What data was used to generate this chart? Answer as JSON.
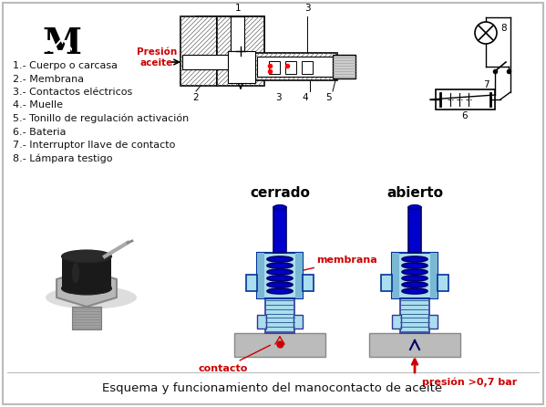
{
  "caption": "Esquema y funcionamiento del manocontacto de aceite",
  "bg_color": "#f0f0f0",
  "border_color": "#bbbbbb",
  "legend_items": [
    "1.- Cuerpo o carcasa",
    "2.- Membrana",
    "3.- Contactos eléctricos",
    "4.- Muelle",
    "5.- Tonillo de regulación activación",
    "6.- Bateria",
    "7.- Interruptor llave de contacto",
    "8.- Lámpara testigo"
  ],
  "label_cerrado": "cerrado",
  "label_abierto": "abierto",
  "label_membrana": "membrana",
  "label_contacto": "contacto",
  "label_presion": "presión >0,7 bar",
  "label_presion_aceite": "Presión\naceite",
  "text_color_red": "#cc0000",
  "text_color_black": "#111111",
  "blue_dark": "#0000cc",
  "blue_mid": "#3399cc",
  "blue_light": "#aaddee",
  "gray_color": "#bbbbbb",
  "hatch_color": "#555555",
  "caption_fontsize": 9.5,
  "legend_fontsize": 8.0
}
